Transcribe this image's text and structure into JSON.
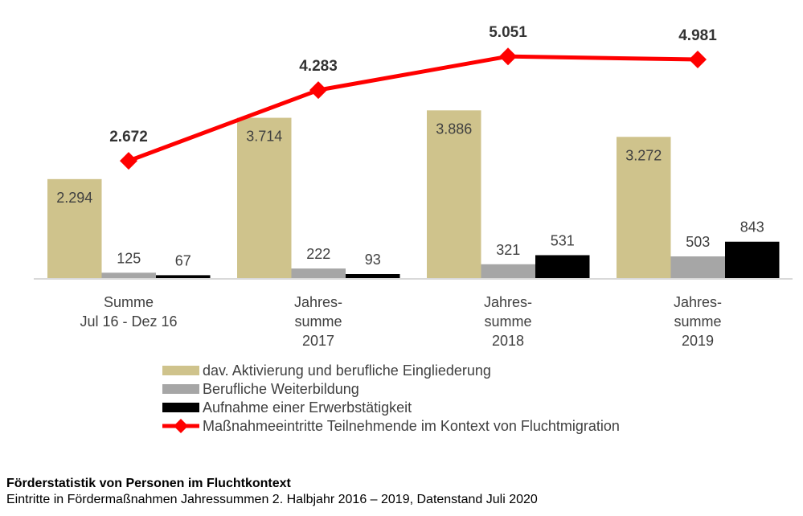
{
  "chart_data": {
    "type": "bar",
    "title": "Förderstatistik von Personen im Fluchtkontext",
    "subtitle": "Eintritte in Fördermaßnahmen Jahressummen 2. Halbjahr 2016 – 2019, Datenstand Juli 2020",
    "categories": [
      [
        "Summe",
        "Jul 16 - Dez 16"
      ],
      [
        "Jahres-",
        "summe",
        "2017"
      ],
      [
        "Jahres-",
        "summe",
        "2018"
      ],
      [
        "Jahres-",
        "summe",
        "2019"
      ]
    ],
    "series": [
      {
        "name": "dav. Aktivierung und berufliche Eingliederung",
        "type": "bar",
        "color": "#CFC38C",
        "values": [
          2294,
          3714,
          3886,
          3272
        ],
        "labels": [
          "2.294",
          "3.714",
          "3.886",
          "3.272"
        ]
      },
      {
        "name": "Berufliche Weiterbildung",
        "type": "bar",
        "color": "#A6A6A6",
        "values": [
          125,
          222,
          321,
          503
        ],
        "labels": [
          "125",
          "222",
          "321",
          "503"
        ]
      },
      {
        "name": "Aufnahme einer Erwerbstätigkeit",
        "type": "bar",
        "color": "#000000",
        "values": [
          67,
          93,
          531,
          843
        ],
        "labels": [
          "67",
          "93",
          "531",
          "843"
        ]
      },
      {
        "name": "Maßnahmeeintritte Teilnehmende im Kontext von Fluchtmigration",
        "type": "line",
        "color": "#FF0000",
        "values": [
          2672,
          4283,
          5051,
          4981
        ],
        "labels": [
          "2.672",
          "4.283",
          "5.051",
          "4.981"
        ]
      }
    ],
    "xlabel": "",
    "ylabel": "",
    "ylim": [
      0,
      6400
    ],
    "grid": false,
    "legend_position": "bottom"
  }
}
